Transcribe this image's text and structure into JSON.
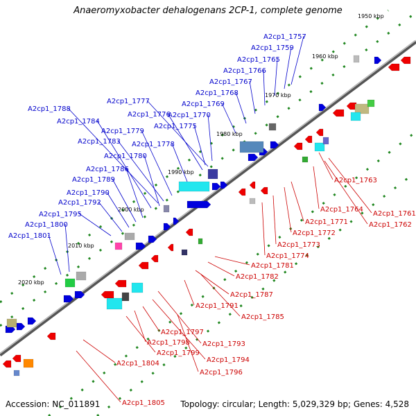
{
  "title": "Anaeromyxobacter dehalogenans 2CP-1, complete genome",
  "footer": {
    "accession": "Accession: NC_011891",
    "stats": "Topology: circular; Length: 5,029,329 bp; Genes: 4,528"
  },
  "colors": {
    "plus_labels": "#0000cc",
    "minus_labels": "#cc0000",
    "plus_genes": "#0000dd",
    "minus_genes": "#ee0000",
    "backbone": "#555555",
    "ticks": "#228822"
  },
  "kbp_ticks": [
    "1950 kbp",
    "1960 kbp",
    "1970 kbp",
    "1980 kbp",
    "1990 kbp",
    "2000 kbp",
    "2010 kbp",
    "2020 kbp"
  ],
  "plus_strand_labels": [
    "A2cp1_1757",
    "A2cp1_1759",
    "A2cp1_1765",
    "A2cp1_1766",
    "A2cp1_1767",
    "A2cp1_1768",
    "A2cp1_1769",
    "A2cp1_1777",
    "A2cp1_1776",
    "A2cp1_1770",
    "A2cp1_1775",
    "A2cp1_1788",
    "A2cp1_1784",
    "A2cp1_1779",
    "A2cp1_1783",
    "A2cp1_1778",
    "A2cp1_1780",
    "A2cp1_1786",
    "A2cp1_1789",
    "A2cp1_1790",
    "A2cp1_1792",
    "A2cp1_1795",
    "A2cp1_1800",
    "A2cp1_1801"
  ],
  "minus_strand_labels": [
    "A2cp1_1763",
    "A2cp1_1761",
    "A2cp1_1764",
    "A2cp1_1762",
    "A2cp1_1771",
    "A2cp1_1772",
    "A2cp1_1773",
    "A2cp1_1774",
    "A2cp1_1781",
    "A2cp1_1782",
    "A2cp1_1787",
    "A2cp1_1791",
    "A2cp1_1785",
    "A2cp1_1797",
    "A2cp1_1798",
    "A2cp1_1793",
    "A2cp1_1799",
    "A2cp1_1794",
    "A2cp1_1804",
    "A2cp1_1796",
    "A2cp1_1805"
  ]
}
